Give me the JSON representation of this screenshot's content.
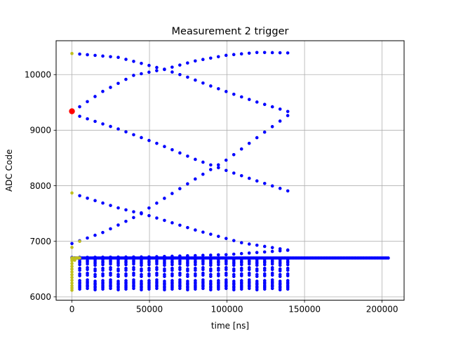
{
  "chart_data": {
    "type": "scatter",
    "title": "Measurement 2 trigger",
    "xlabel": "time [ns]",
    "ylabel": "ADC Code",
    "xlim": [
      -10200,
      214200
    ],
    "ylim": [
      5940,
      10610
    ],
    "xticks": [
      0,
      50000,
      100000,
      150000,
      200000
    ],
    "yticks": [
      6000,
      7000,
      8000,
      9000,
      10000
    ],
    "grid": true,
    "colors": {
      "series_main": "#0000ff",
      "series_early": "#bfbf1f",
      "series_marker": "#ff0000"
    },
    "series": [
      {
        "color": "#0000ff",
        "lines": [
          {
            "x0": 5000,
            "x1": 140000,
            "points": [
              [
                5000,
                10370
              ],
              [
                30000,
                10310
              ],
              [
                45000,
                10200
              ],
              [
                60000,
                10090
              ],
              [
                75000,
                9950
              ],
              [
                90000,
                9790
              ],
              [
                105000,
                9640
              ],
              [
                120000,
                9500
              ],
              [
                140000,
                9330
              ]
            ]
          },
          {
            "x0": 0,
            "x1": 140000,
            "points": [
              [
                0,
                9330
              ],
              [
                20000,
                9700
              ],
              [
                40000,
                9990
              ],
              [
                60000,
                10100
              ],
              [
                80000,
                10250
              ],
              [
                100000,
                10350
              ],
              [
                120000,
                10400
              ],
              [
                140000,
                10390
              ]
            ]
          },
          {
            "x0": 5000,
            "x1": 140000,
            "points": [
              [
                5000,
                9250
              ],
              [
                30000,
                9020
              ],
              [
                55000,
                8760
              ],
              [
                80000,
                8470
              ],
              [
                100000,
                8270
              ],
              [
                120000,
                8080
              ],
              [
                140000,
                7900
              ]
            ]
          },
          {
            "x0": 0,
            "x1": 140000,
            "points": [
              [
                0,
                6960
              ],
              [
                20000,
                7160
              ],
              [
                40000,
                7430
              ],
              [
                60000,
                7780
              ],
              [
                80000,
                8130
              ],
              [
                100000,
                8470
              ],
              [
                120000,
                8880
              ],
              [
                140000,
                9280
              ]
            ]
          },
          {
            "x0": 5000,
            "x1": 140000,
            "points": [
              [
                5000,
                7820
              ],
              [
                30000,
                7600
              ],
              [
                50000,
                7460
              ],
              [
                80000,
                7200
              ],
              [
                110000,
                6970
              ],
              [
                140000,
                6840
              ]
            ]
          },
          {
            "x0": 0,
            "x1": 140000,
            "points": [
              [
                0,
                6710
              ],
              [
                50000,
                6720
              ],
              [
                100000,
                6760
              ],
              [
                140000,
                6840
              ]
            ]
          }
        ],
        "baseline": {
          "y": 6700,
          "x0": 0,
          "x1": 204500
        },
        "columns": {
          "x0": 5000,
          "x1": 140000,
          "step": 4970,
          "levels": [
            6140,
            6200,
            6260,
            6380,
            6480,
            6580,
            6640
          ]
        }
      },
      {
        "color": "#bfbf1f",
        "points": [
          [
            0,
            10380
          ],
          [
            0,
            7870
          ],
          [
            0,
            6890
          ],
          [
            0,
            6700
          ],
          [
            0,
            6680
          ],
          [
            0,
            6650
          ],
          [
            0,
            6600
          ],
          [
            0,
            6550
          ],
          [
            0,
            6500
          ],
          [
            0,
            6450
          ],
          [
            0,
            6400
          ],
          [
            0,
            6350
          ],
          [
            0,
            6300
          ],
          [
            0,
            6250
          ],
          [
            0,
            6200
          ],
          [
            0,
            6160
          ],
          [
            0,
            6120
          ],
          [
            1000,
            6700
          ],
          [
            1800,
            6690
          ],
          [
            2600,
            6700
          ],
          [
            3400,
            6700
          ],
          [
            4200,
            6700
          ],
          [
            5000,
            7000
          ],
          [
            5000,
            6700
          ],
          [
            1800,
            6660
          ]
        ]
      },
      {
        "color": "#ff0000",
        "points": [
          [
            0,
            9340
          ]
        ]
      }
    ]
  }
}
